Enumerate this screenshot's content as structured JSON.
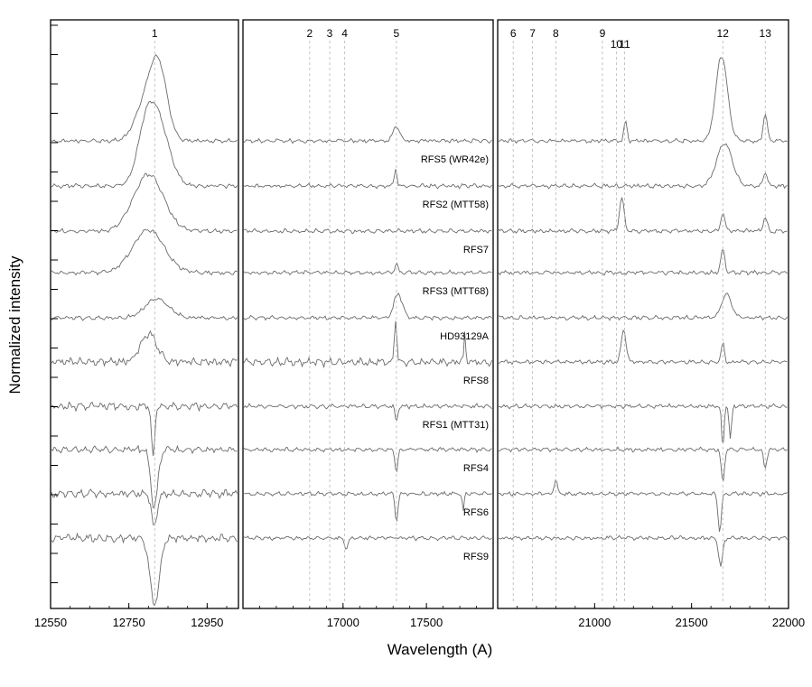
{
  "chart_data": {
    "type": "line",
    "xlabel": "Wavelength (A)",
    "ylabel": "Normalized intensity",
    "grid": false,
    "series": [
      {
        "name": "RFS5 (WR42e)"
      },
      {
        "name": "RFS2 (MTT58)"
      },
      {
        "name": "RFS7"
      },
      {
        "name": "RFS3 (MTT68)"
      },
      {
        "name": "HD93129A"
      },
      {
        "name": "RFS8"
      },
      {
        "name": "RFS1 (MTT31)"
      },
      {
        "name": "RFS4"
      },
      {
        "name": "RFS6"
      },
      {
        "name": "RFS9"
      }
    ],
    "panels": [
      {
        "xlim": [
          12550,
          13030
        ],
        "ticks": [
          {
            "v": 12550,
            "l": "12550"
          },
          {
            "v": 12750,
            "l": "12750"
          },
          {
            "v": 12950,
            "l": "12950"
          }
        ],
        "lines": [
          {
            "label": "1",
            "x": 12816
          }
        ],
        "profiles": [
          [
            {
              "c": 12826,
              "a": 0.75,
              "w": 22
            },
            {
              "c": 12790,
              "a": 0.35,
              "w": 25
            }
          ],
          [
            {
              "c": 12820,
              "a": 0.75,
              "w": 30
            },
            {
              "c": 12790,
              "a": 0.3,
              "w": 20
            }
          ],
          [
            {
              "c": 12800,
              "a": 0.6,
              "w": 38
            }
          ],
          [
            {
              "c": 12800,
              "a": 0.45,
              "w": 40
            }
          ],
          [
            {
              "c": 12822,
              "a": 0.2,
              "w": 30
            }
          ],
          [
            {
              "c": 12800,
              "a": 0.3,
              "w": 20
            }
          ],
          [
            {
              "c": 12812,
              "a": -0.55,
              "w": 4
            }
          ],
          [
            {
              "c": 12815,
              "a": -0.6,
              "w": 9
            }
          ],
          [
            {
              "c": 12815,
              "a": -0.35,
              "w": 7
            }
          ],
          [
            {
              "c": 12816,
              "a": -0.7,
              "w": 12
            }
          ]
        ]
      },
      {
        "xlim": [
          16400,
          17900
        ],
        "ticks": [
          {
            "v": 17000,
            "l": "17000"
          },
          {
            "v": 17500,
            "l": "17500"
          }
        ],
        "lines": [
          {
            "label": "2",
            "x": 16800
          },
          {
            "label": "3",
            "x": 16920
          },
          {
            "label": "4",
            "x": 17010
          },
          {
            "label": "5",
            "x": 17320
          }
        ],
        "profiles": [
          [
            {
              "c": 17320,
              "a": 0.15,
              "w": 20
            }
          ],
          [
            {
              "c": 17315,
              "a": 0.18,
              "w": 8
            }
          ],
          [],
          [
            {
              "c": 17320,
              "a": 0.1,
              "w": 8
            }
          ],
          [
            {
              "c": 17330,
              "a": 0.25,
              "w": 25
            }
          ],
          [
            {
              "c": 17315,
              "a": 0.45,
              "w": 8
            },
            {
              "c": 17730,
              "a": 0.3,
              "w": 5
            }
          ],
          [
            {
              "c": 17320,
              "a": -0.15,
              "w": 8
            }
          ],
          [
            {
              "c": 17320,
              "a": -0.25,
              "w": 8
            }
          ],
          [
            {
              "c": 17320,
              "a": -0.3,
              "w": 8
            },
            {
              "c": 17720,
              "a": -0.2,
              "w": 5
            }
          ],
          [
            {
              "c": 17020,
              "a": -0.12,
              "w": 10
            }
          ]
        ]
      },
      {
        "xlim": [
          20500,
          22000
        ],
        "ticks": [
          {
            "v": 21000,
            "l": "21000"
          },
          {
            "v": 21500,
            "l": "21500"
          },
          {
            "v": 22000,
            "l": "22000"
          }
        ],
        "lines": [
          {
            "label": "6",
            "x": 20580
          },
          {
            "label": "7",
            "x": 20680
          },
          {
            "label": "8",
            "x": 20800
          },
          {
            "label": "9",
            "x": 21040
          },
          {
            "label": "10",
            "x": 21112
          },
          {
            "label": "11",
            "x": 21155
          },
          {
            "label": "12",
            "x": 21661
          },
          {
            "label": "13",
            "x": 21880
          }
        ],
        "profiles": [
          [
            {
              "c": 21655,
              "a": 0.9,
              "w": 30
            },
            {
              "c": 21880,
              "a": 0.3,
              "w": 10
            },
            {
              "c": 21160,
              "a": 0.2,
              "w": 8
            }
          ],
          [
            {
              "c": 21670,
              "a": 0.45,
              "w": 40
            },
            {
              "c": 21880,
              "a": 0.15,
              "w": 10
            }
          ],
          [
            {
              "c": 21140,
              "a": 0.35,
              "w": 12
            },
            {
              "c": 21661,
              "a": 0.2,
              "w": 10
            },
            {
              "c": 21880,
              "a": 0.15,
              "w": 10
            }
          ],
          [
            {
              "c": 21661,
              "a": 0.25,
              "w": 10
            }
          ],
          [
            {
              "c": 21680,
              "a": 0.25,
              "w": 25
            }
          ],
          [
            {
              "c": 21150,
              "a": 0.35,
              "w": 12
            },
            {
              "c": 21661,
              "a": 0.2,
              "w": 8
            }
          ],
          [
            {
              "c": 21661,
              "a": -0.45,
              "w": 6
            },
            {
              "c": 21700,
              "a": -0.35,
              "w": 6
            }
          ],
          [
            {
              "c": 21661,
              "a": -0.35,
              "w": 8
            },
            {
              "c": 21880,
              "a": -0.2,
              "w": 8
            }
          ],
          [
            {
              "c": 21645,
              "a": -0.4,
              "w": 8
            },
            {
              "c": 20800,
              "a": 0.15,
              "w": 8
            }
          ],
          [
            {
              "c": 21650,
              "a": -0.3,
              "w": 10
            }
          ]
        ]
      }
    ]
  }
}
